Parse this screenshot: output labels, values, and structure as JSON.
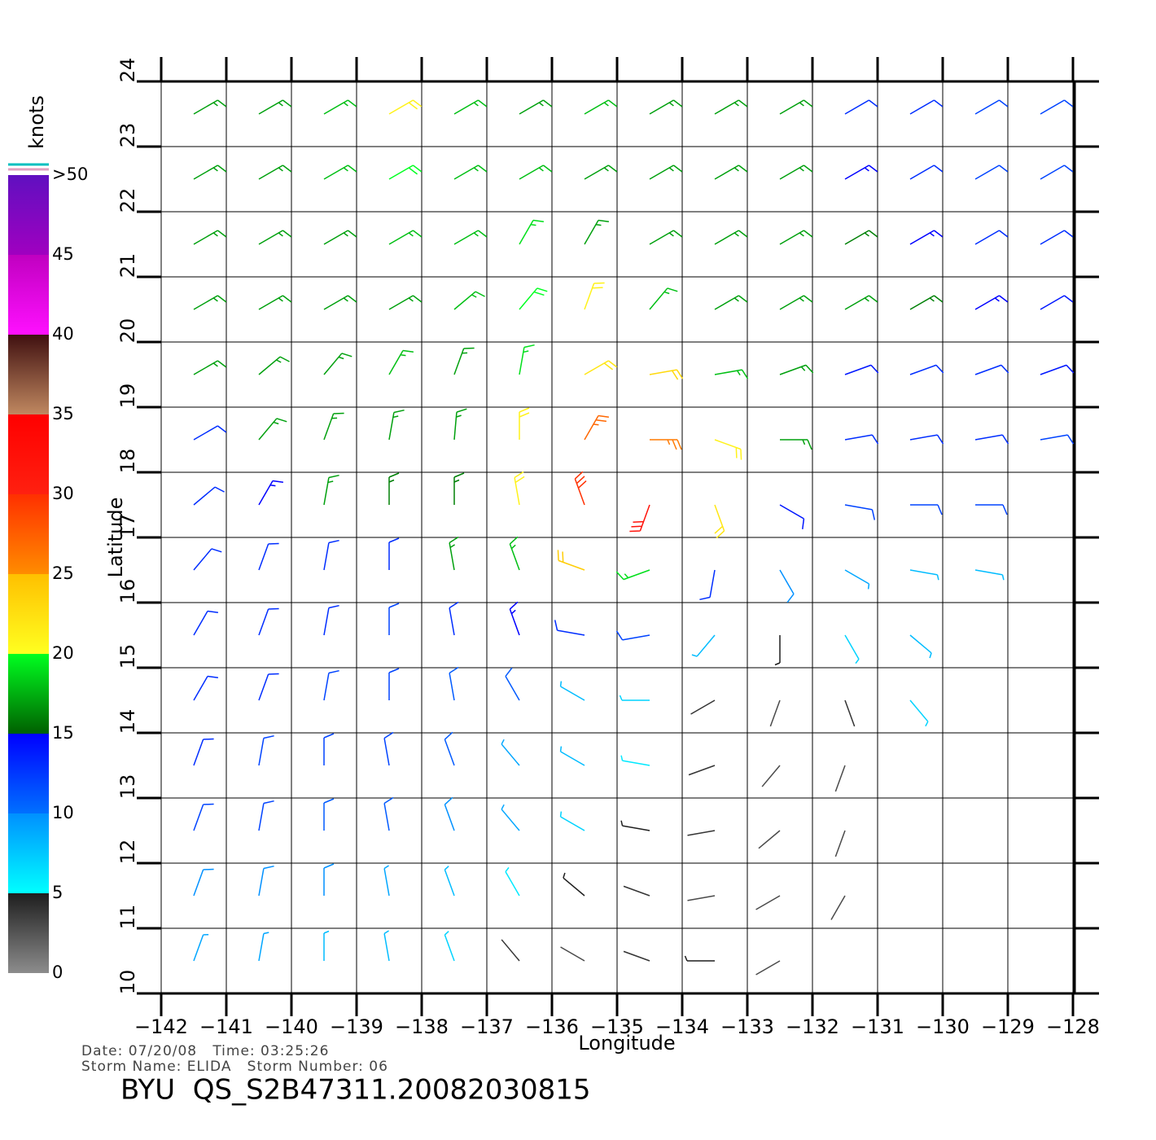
{
  "chart_data": {
    "type": "wind-barb",
    "xlabel": "Longitude",
    "ylabel": "Latitude",
    "xlim": [
      -142,
      -127.6
    ],
    "ylim": [
      10,
      24
    ],
    "xticks": [
      {
        "value": -142,
        "label": "−142"
      },
      {
        "value": -141,
        "label": "−141"
      },
      {
        "value": -140,
        "label": "−140"
      },
      {
        "value": -139,
        "label": "−139"
      },
      {
        "value": -138,
        "label": "−138"
      },
      {
        "value": -137,
        "label": "−137"
      },
      {
        "value": -136,
        "label": "−136"
      },
      {
        "value": -135,
        "label": "−135"
      },
      {
        "value": -134,
        "label": "−134"
      },
      {
        "value": -133,
        "label": "−133"
      },
      {
        "value": -132,
        "label": "−132"
      },
      {
        "value": -131,
        "label": "−131"
      },
      {
        "value": -130,
        "label": "−130"
      },
      {
        "value": -129,
        "label": "−129"
      },
      {
        "value": -128,
        "label": "−128"
      }
    ],
    "yticks": [
      10,
      11,
      12,
      13,
      14,
      15,
      16,
      17,
      18,
      19,
      20,
      21,
      22,
      23,
      24
    ],
    "grid": true,
    "lon": [
      -141.5,
      -140.5,
      -139.5,
      -138.5,
      -137.5,
      -136.5,
      -135.5,
      -134.5,
      -133.5,
      -132.5,
      -131.5,
      -130.5,
      -129.5,
      -128.5
    ],
    "lat": [
      23.5,
      22.5,
      21.5,
      20.5,
      19.5,
      18.5,
      17.5,
      16.5,
      15.5,
      14.5,
      13.5,
      12.5,
      11.5,
      10.5
    ],
    "speed": [
      [
        17,
        17,
        18,
        21,
        18,
        17,
        18,
        17,
        17,
        17,
        13,
        13,
        12,
        12
      ],
      [
        17,
        17,
        18,
        20,
        18,
        18,
        17,
        17,
        17,
        17,
        15,
        13,
        12,
        12
      ],
      [
        17,
        17,
        17,
        18,
        18,
        19,
        17,
        17,
        17,
        17,
        16,
        15,
        13,
        13
      ],
      [
        17,
        17,
        17,
        17,
        18,
        20,
        21,
        18,
        17,
        17,
        17,
        16,
        15,
        14
      ],
      [
        17,
        17,
        17,
        18,
        17,
        19,
        22,
        23,
        18,
        17,
        14,
        13,
        13,
        14
      ],
      [
        13,
        17,
        17,
        17,
        17,
        21,
        27,
        26,
        21,
        17,
        13,
        13,
        13,
        12
      ],
      [
        13,
        15,
        17,
        16,
        16,
        21,
        30,
        32,
        22,
        14,
        12,
        12,
        12,
        null
      ],
      [
        13,
        13,
        13,
        13,
        17,
        18,
        24,
        19,
        13,
        10,
        9,
        8,
        8,
        null
      ],
      [
        13,
        13,
        13,
        12,
        13,
        15,
        13,
        12,
        8,
        5,
        7,
        8,
        null,
        null
      ],
      [
        13,
        13,
        12,
        12,
        11,
        11,
        8,
        7,
        4,
        3,
        4,
        7,
        null,
        null
      ],
      [
        13,
        12,
        12,
        12,
        11,
        9,
        8,
        6,
        4,
        3,
        3,
        null,
        null,
        null
      ],
      [
        12,
        12,
        11,
        11,
        10,
        9,
        7,
        5,
        4,
        3,
        3,
        null,
        null,
        null
      ],
      [
        10,
        10,
        10,
        9,
        8,
        6,
        5,
        4,
        3,
        3,
        3,
        null,
        null,
        null
      ],
      [
        9,
        9,
        8,
        8,
        7,
        4,
        3,
        4,
        5,
        3,
        null,
        null,
        null,
        null
      ]
    ],
    "direction": [
      [
        60,
        60,
        60,
        60,
        60,
        60,
        60,
        60,
        60,
        60,
        60,
        60,
        60,
        60
      ],
      [
        60,
        60,
        60,
        60,
        60,
        60,
        60,
        60,
        60,
        60,
        60,
        60,
        60,
        60
      ],
      [
        60,
        60,
        60,
        60,
        60,
        30,
        30,
        60,
        60,
        60,
        60,
        60,
        60,
        60
      ],
      [
        60,
        60,
        60,
        60,
        50,
        40,
        20,
        40,
        60,
        60,
        60,
        60,
        60,
        60
      ],
      [
        60,
        50,
        40,
        30,
        20,
        10,
        60,
        80,
        80,
        70,
        70,
        70,
        70,
        70
      ],
      [
        60,
        40,
        20,
        10,
        5,
        0,
        30,
        90,
        110,
        90,
        80,
        80,
        80,
        80
      ],
      [
        50,
        30,
        10,
        0,
        0,
        350,
        340,
        200,
        160,
        120,
        100,
        90,
        90,
        null
      ],
      [
        40,
        20,
        10,
        0,
        350,
        340,
        290,
        250,
        190,
        150,
        120,
        100,
        100,
        null
      ],
      [
        30,
        20,
        10,
        0,
        350,
        340,
        280,
        260,
        220,
        180,
        150,
        130,
        null,
        null
      ],
      [
        30,
        20,
        10,
        0,
        350,
        330,
        300,
        270,
        240,
        200,
        160,
        140,
        null,
        null
      ],
      [
        20,
        10,
        0,
        350,
        340,
        320,
        300,
        280,
        250,
        220,
        200,
        null,
        null,
        null
      ],
      [
        20,
        10,
        0,
        350,
        340,
        320,
        300,
        280,
        260,
        230,
        200,
        null,
        null,
        null
      ],
      [
        20,
        10,
        0,
        350,
        340,
        330,
        310,
        290,
        260,
        240,
        210,
        null,
        null,
        null
      ],
      [
        20,
        10,
        0,
        350,
        340,
        320,
        300,
        290,
        270,
        240,
        null,
        null,
        null,
        null
      ]
    ],
    "colorbar": {
      "label": "knots",
      "ticks": [
        0,
        5,
        10,
        15,
        20,
        25,
        30,
        35,
        40,
        45,
        {
          "value": 50,
          "label": ">50"
        }
      ],
      "segments": [
        [
          "#8c8c8c",
          "#1e1e1e"
        ],
        [
          "#00ffff",
          "#0090ff"
        ],
        [
          "#0070ff",
          "#0000ff"
        ],
        [
          "#006000",
          "#00ff20"
        ],
        [
          "#ffff20",
          "#ffc000"
        ],
        [
          "#ff8c00",
          "#ff3000"
        ],
        [
          "#ff2010",
          "#ff0000"
        ],
        [
          "#c08860",
          "#401010"
        ],
        [
          "#ff10ff",
          "#c000c0"
        ],
        [
          "#a000c0",
          "#6010c0"
        ]
      ]
    }
  },
  "footer": {
    "line1": "Date: 07/20/08   Time: 03:25:26",
    "line2": "Storm Name: ELIDA   Storm Number: 06",
    "title": "BYU  QS_S2B47311.20082030815"
  }
}
